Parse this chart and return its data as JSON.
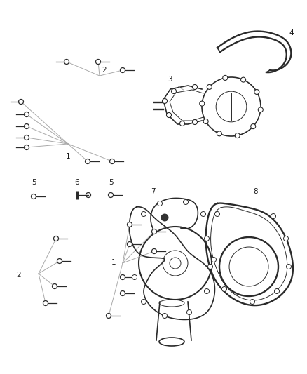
{
  "background_color": "#ffffff",
  "line_color": "#2a2a2a",
  "label_color": "#1a1a1a",
  "line_color_light": "#999999",
  "figsize": [
    4.38,
    5.33
  ],
  "dpi": 100
}
